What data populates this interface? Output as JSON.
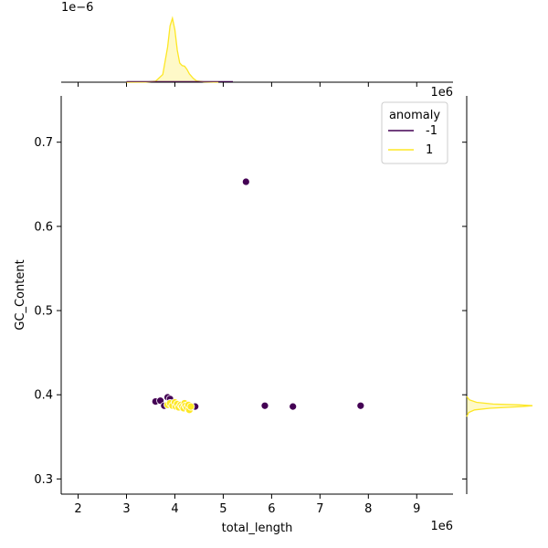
{
  "chart_data": {
    "type": "scatter",
    "xlabel": "total_length",
    "ylabel": "GC_Content",
    "x_exponent_label": "1e6",
    "top_exponent_label": "1e−6",
    "right_exponent_label": "1e6",
    "xlim": [
      1.65,
      9.75
    ],
    "ylim": [
      0.282,
      0.755
    ],
    "x_ticks": [
      2,
      3,
      4,
      5,
      6,
      7,
      8,
      9
    ],
    "x_tick_labels": [
      "2",
      "3",
      "4",
      "5",
      "6",
      "7",
      "8",
      "9"
    ],
    "y_ticks": [
      0.3,
      0.4,
      0.5,
      0.6,
      0.7
    ],
    "y_tick_labels": [
      "0.3",
      "0.4",
      "0.5",
      "0.6",
      "0.7"
    ],
    "grid": false,
    "legend": {
      "title": "anomaly",
      "placement": "top-right",
      "entries": [
        {
          "label": "-1",
          "color": "#440154"
        },
        {
          "label": "1",
          "color": "#fde725"
        }
      ]
    },
    "series": [
      {
        "name": "-1",
        "color": "#440154",
        "points": [
          [
            5.47,
            0.653
          ],
          [
            3.6,
            0.392
          ],
          [
            3.7,
            0.393
          ],
          [
            3.78,
            0.387
          ],
          [
            3.85,
            0.397
          ],
          [
            3.9,
            0.395
          ],
          [
            4.42,
            0.386
          ],
          [
            5.86,
            0.387
          ],
          [
            6.44,
            0.386
          ],
          [
            7.84,
            0.387
          ]
        ]
      },
      {
        "name": "1",
        "color": "#fde725",
        "points": [
          [
            3.85,
            0.388
          ],
          [
            3.9,
            0.39
          ],
          [
            3.95,
            0.387
          ],
          [
            4.0,
            0.391
          ],
          [
            4.02,
            0.386
          ],
          [
            4.05,
            0.389
          ],
          [
            4.08,
            0.385
          ],
          [
            4.12,
            0.388
          ],
          [
            4.15,
            0.386
          ],
          [
            4.18,
            0.384
          ],
          [
            4.2,
            0.39
          ],
          [
            4.22,
            0.387
          ],
          [
            4.25,
            0.385
          ],
          [
            4.28,
            0.388
          ],
          [
            4.3,
            0.382
          ],
          [
            4.33,
            0.386
          ]
        ]
      }
    ],
    "marginal_x_density": {
      "name": "1",
      "color": "#fde725",
      "x": [
        3.0,
        3.4,
        3.6,
        3.75,
        3.85,
        3.9,
        3.95,
        4.0,
        4.05,
        4.1,
        4.15,
        4.2,
        4.25,
        4.3,
        4.38,
        4.45,
        4.6,
        4.9
      ],
      "density": [
        0.0,
        0.002,
        0.015,
        0.12,
        0.55,
        0.88,
        1.0,
        0.82,
        0.5,
        0.3,
        0.26,
        0.25,
        0.2,
        0.13,
        0.06,
        0.02,
        0.005,
        0.0
      ]
    },
    "marginal_y_density": {
      "name": "1",
      "color": "#fde725",
      "y": [
        0.374,
        0.379,
        0.382,
        0.384,
        0.386,
        0.387,
        0.388,
        0.389,
        0.391,
        0.394,
        0.398
      ],
      "density": [
        0.0,
        0.03,
        0.12,
        0.35,
        0.85,
        1.0,
        0.8,
        0.4,
        0.15,
        0.04,
        0.0
      ]
    },
    "marginal_x_density_neg": {
      "name": "-1",
      "color": "#440154"
    },
    "marginal_y_density_neg": {
      "name": "-1",
      "color": "#440154"
    }
  }
}
